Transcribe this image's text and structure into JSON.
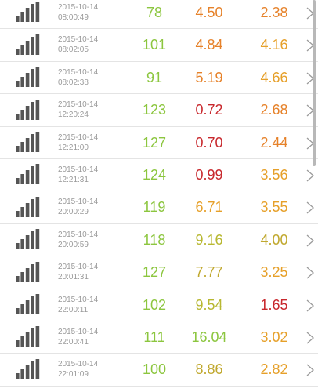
{
  "colors": {
    "good": "#8cc63f",
    "okay": "#b8b832",
    "warn": "#e6822a",
    "bad": "#c8282d",
    "signal": "#555555",
    "timestamp": "#9a9a9a"
  },
  "icons": {
    "signal": "signal-strength-icon",
    "chevron": "chevron-right-icon"
  },
  "rows": [
    {
      "date": "2015-10-14",
      "time": "08:00:49",
      "v1": "78",
      "v2": "4.50",
      "v3": "2.38",
      "c1": "#8cc63f",
      "c2": "#e6822a",
      "c3": "#e6822a"
    },
    {
      "date": "2015-10-14",
      "time": "08:02:05",
      "v1": "101",
      "v2": "4.84",
      "v3": "4.16",
      "c1": "#8cc63f",
      "c2": "#e6822a",
      "c3": "#e6a02a"
    },
    {
      "date": "2015-10-14",
      "time": "08:02:38",
      "v1": "91",
      "v2": "5.19",
      "v3": "4.66",
      "c1": "#8cc63f",
      "c2": "#e6822a",
      "c3": "#e6a02a"
    },
    {
      "date": "2015-10-14",
      "time": "12:20:24",
      "v1": "123",
      "v2": "0.72",
      "v3": "2.68",
      "c1": "#8cc63f",
      "c2": "#c8282d",
      "c3": "#e6822a"
    },
    {
      "date": "2015-10-14",
      "time": "12:21:00",
      "v1": "127",
      "v2": "0.70",
      "v3": "2.44",
      "c1": "#8cc63f",
      "c2": "#c8282d",
      "c3": "#e6822a"
    },
    {
      "date": "2015-10-14",
      "time": "12:21:31",
      "v1": "124",
      "v2": "0.99",
      "v3": "3.56",
      "c1": "#8cc63f",
      "c2": "#c8282d",
      "c3": "#e6a02a"
    },
    {
      "date": "2015-10-14",
      "time": "20:00:29",
      "v1": "119",
      "v2": "6.71",
      "v3": "3.55",
      "c1": "#8cc63f",
      "c2": "#e6a02a",
      "c3": "#e6a02a"
    },
    {
      "date": "2015-10-14",
      "time": "20:00:59",
      "v1": "118",
      "v2": "9.16",
      "v3": "4.00",
      "c1": "#8cc63f",
      "c2": "#b8b832",
      "c3": "#c0a82e"
    },
    {
      "date": "2015-10-14",
      "time": "20:01:31",
      "v1": "127",
      "v2": "7.77",
      "v3": "3.25",
      "c1": "#8cc63f",
      "c2": "#c0a82e",
      "c3": "#e6a02a"
    },
    {
      "date": "2015-10-14",
      "time": "22:00:11",
      "v1": "102",
      "v2": "9.54",
      "v3": "1.65",
      "c1": "#8cc63f",
      "c2": "#b8b832",
      "c3": "#c8282d"
    },
    {
      "date": "2015-10-14",
      "time": "22:00:41",
      "v1": "111",
      "v2": "16.04",
      "v3": "3.02",
      "c1": "#8cc63f",
      "c2": "#8cc63f",
      "c3": "#e6a02a"
    },
    {
      "date": "2015-10-14",
      "time": "22:01:09",
      "v1": "100",
      "v2": "8.86",
      "v3": "2.82",
      "c1": "#8cc63f",
      "c2": "#c0a82e",
      "c3": "#e6a02a"
    }
  ]
}
